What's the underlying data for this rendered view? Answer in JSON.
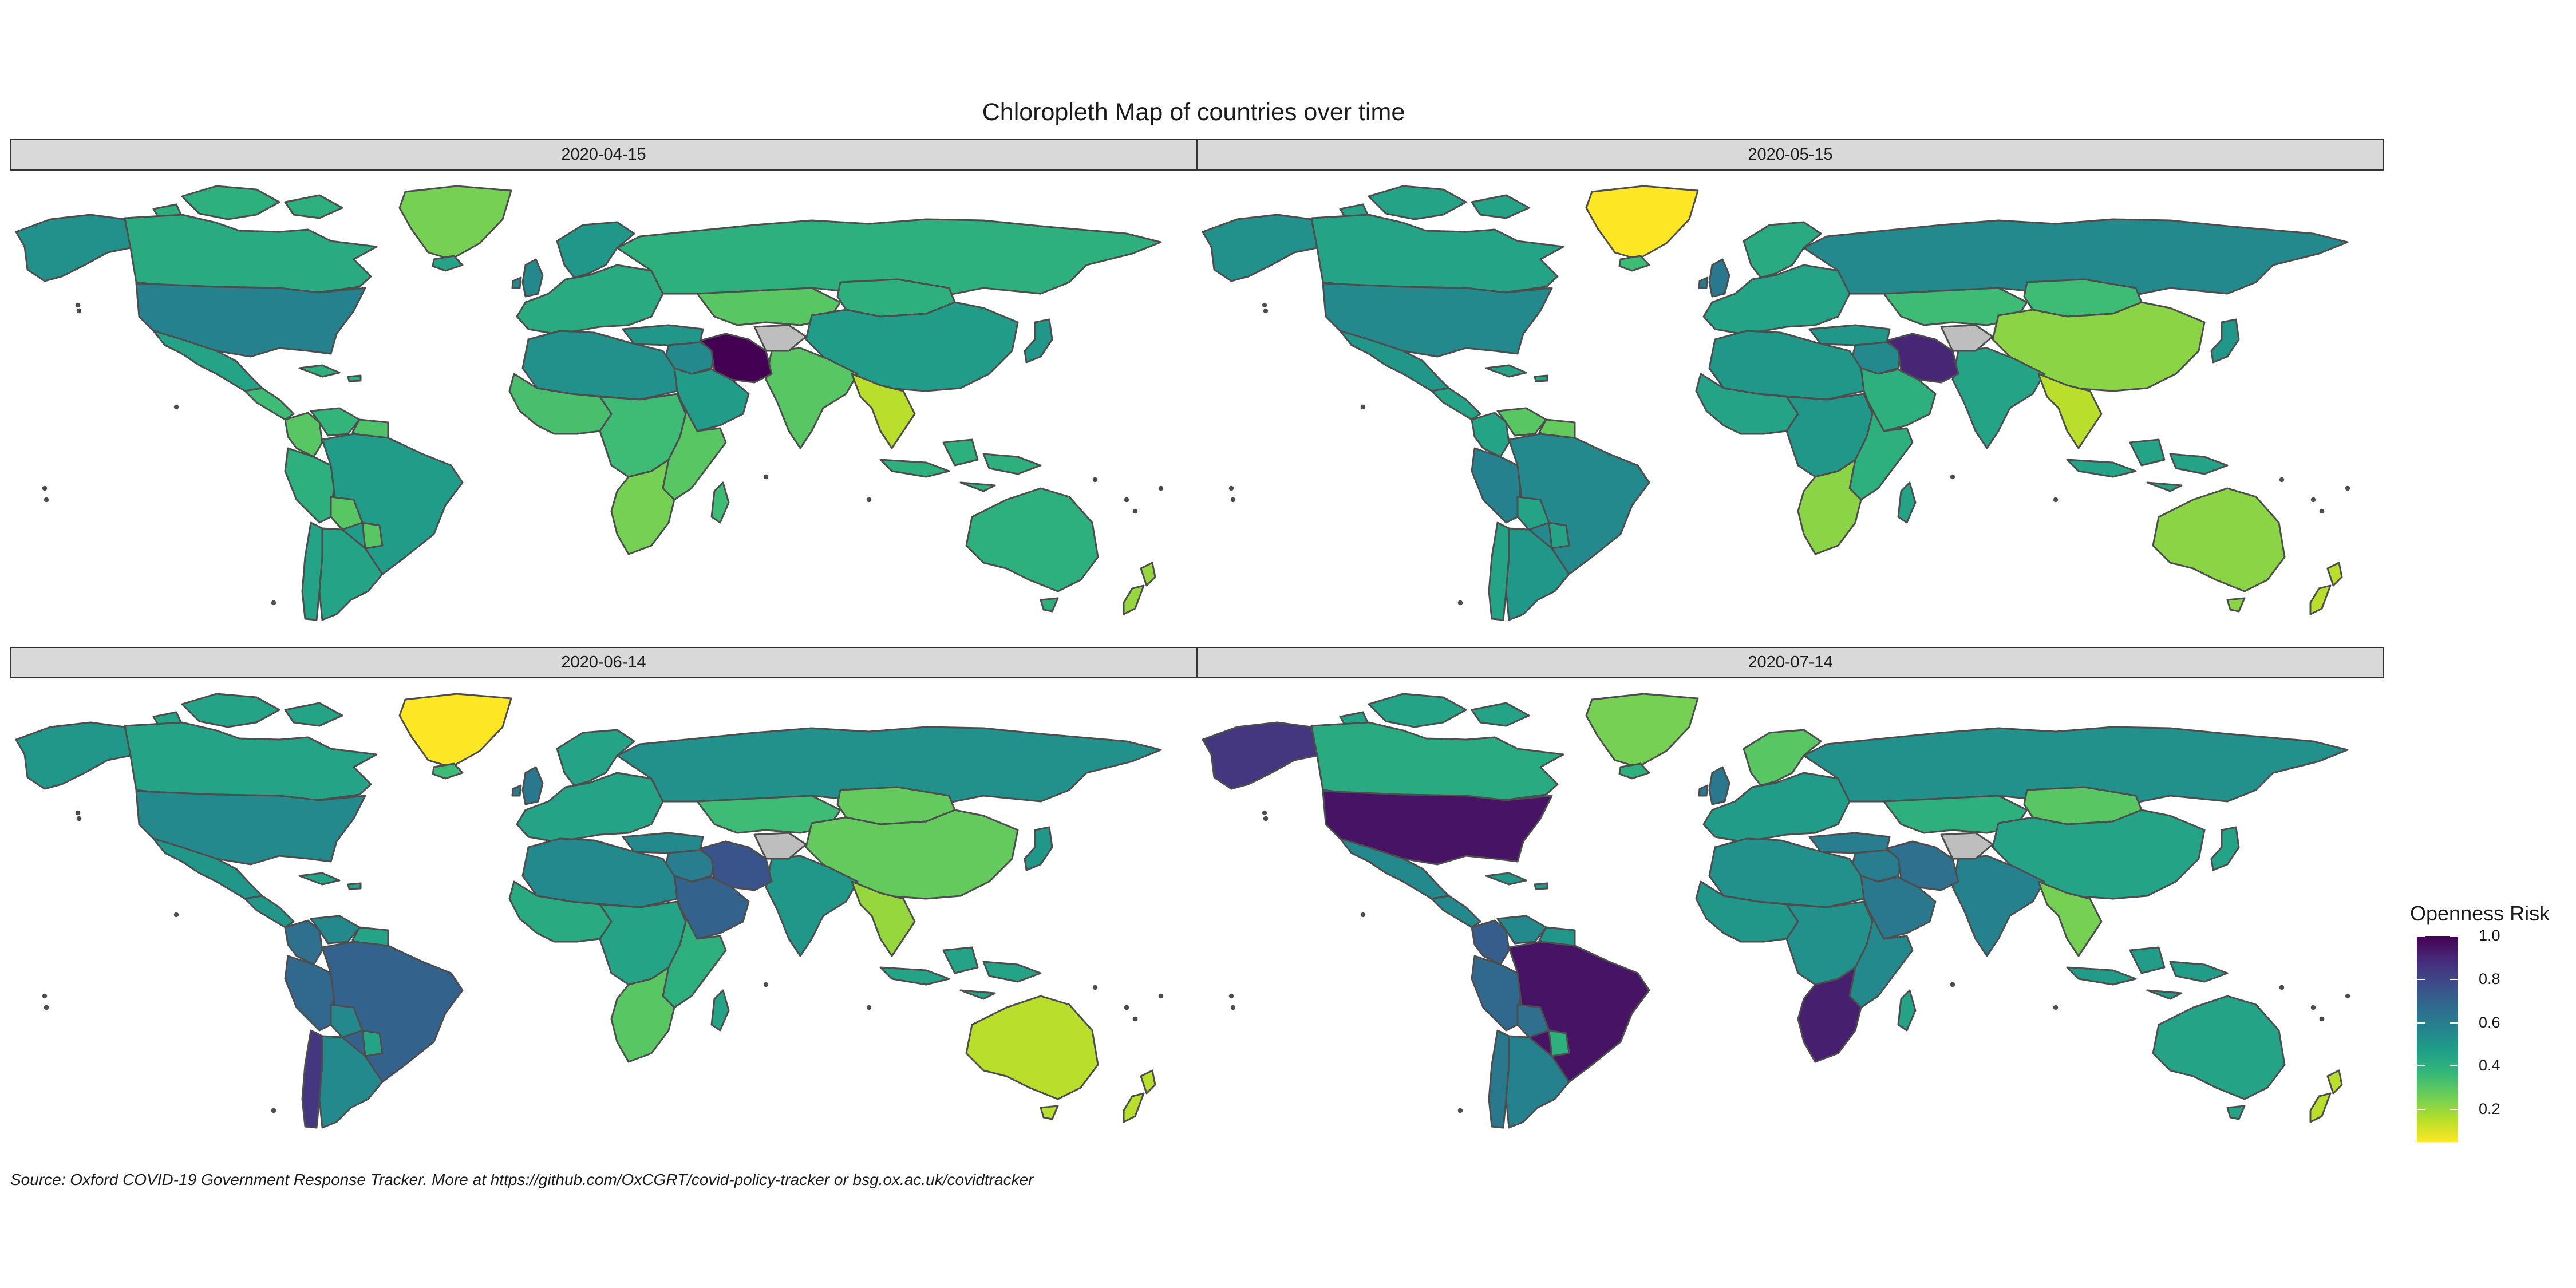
{
  "title": "Chloropleth Map of countries over time",
  "caption": "Source: Oxford COVID-19 Government Response Tracker. More at https://github.com/OxCGRT/covid-policy-tracker or bsg.ox.ac.uk/covidtracker",
  "legend": {
    "title": "Openness Risk",
    "ticks": [
      "1.0",
      "0.8",
      "0.6",
      "0.4",
      "0.2"
    ],
    "tick_values": [
      1.0,
      0.8,
      0.6,
      0.4,
      0.2
    ],
    "range": [
      0.05,
      1.0
    ],
    "palette": [
      "#fde725",
      "#b5de2b",
      "#6ece58",
      "#35b779",
      "#1f9e89",
      "#26828e",
      "#31688e",
      "#3e4989",
      "#482878",
      "#440154"
    ],
    "na_color": "#bebebe"
  },
  "panels": [
    {
      "date": "2020-04-15",
      "values": {
        "canada": 0.42,
        "alaska": 0.52,
        "greenland": 0.25,
        "arctic": 0.4,
        "usa": 0.58,
        "mexico": 0.45,
        "central_america": 0.35,
        "caribbean": 0.4,
        "colombia": 0.3,
        "venezuela": 0.38,
        "guianas": 0.32,
        "peru": 0.4,
        "brazil": 0.48,
        "bolivia": 0.3,
        "chile": 0.45,
        "argentina": 0.45,
        "paraguay": 0.3,
        "iceland": 0.45,
        "uk": 0.55,
        "europe": 0.42,
        "scandinavia": 0.5,
        "russia": 0.4,
        "central_asia": 0.3,
        "turkey": 0.5,
        "middle_east": 0.55,
        "iran": 1.0,
        "afghanistan": null,
        "saudi": 0.48,
        "india": 0.3,
        "china": 0.48,
        "mongolia": 0.4,
        "se_asia": 0.15,
        "japan": 0.5,
        "indonesia": 0.4,
        "australia": 0.4,
        "nz": 0.2,
        "n_africa": 0.52,
        "w_africa": 0.33,
        "c_africa": 0.35,
        "e_africa": 0.3,
        "s_africa": 0.25,
        "madagascar": 0.35
      }
    },
    {
      "date": "2020-05-15",
      "values": {
        "canada": 0.45,
        "alaska": 0.52,
        "greenland": 0.05,
        "arctic": 0.45,
        "usa": 0.55,
        "mexico": 0.5,
        "central_america": 0.45,
        "caribbean": 0.45,
        "colombia": 0.45,
        "venezuela": 0.3,
        "guianas": 0.28,
        "peru": 0.58,
        "brazil": 0.55,
        "bolivia": 0.45,
        "chile": 0.45,
        "argentina": 0.5,
        "paraguay": 0.45,
        "iceland": 0.35,
        "uk": 0.62,
        "europe": 0.45,
        "scandinavia": 0.42,
        "russia": 0.55,
        "central_asia": 0.35,
        "turkey": 0.5,
        "middle_east": 0.55,
        "iran": 0.9,
        "afghanistan": null,
        "saudi": 0.4,
        "india": 0.45,
        "china": 0.22,
        "mongolia": 0.35,
        "se_asia": 0.15,
        "japan": 0.5,
        "indonesia": 0.45,
        "australia": 0.22,
        "nz": 0.15,
        "n_africa": 0.5,
        "w_africa": 0.45,
        "c_africa": 0.5,
        "e_africa": 0.4,
        "s_africa": 0.22,
        "madagascar": 0.45
      }
    },
    {
      "date": "2020-06-14",
      "values": {
        "canada": 0.45,
        "alaska": 0.5,
        "greenland": 0.05,
        "arctic": 0.45,
        "usa": 0.55,
        "mexico": 0.5,
        "central_america": 0.5,
        "caribbean": 0.45,
        "colombia": 0.65,
        "venezuela": 0.55,
        "guianas": 0.45,
        "peru": 0.68,
        "brazil": 0.7,
        "bolivia": 0.55,
        "chile": 0.85,
        "argentina": 0.55,
        "paraguay": 0.45,
        "iceland": 0.35,
        "uk": 0.62,
        "europe": 0.45,
        "scandinavia": 0.45,
        "russia": 0.52,
        "central_asia": 0.35,
        "turkey": 0.55,
        "middle_east": 0.6,
        "iran": 0.75,
        "afghanistan": null,
        "saudi": 0.7,
        "india": 0.5,
        "china": 0.28,
        "mongolia": 0.28,
        "se_asia": 0.2,
        "japan": 0.5,
        "indonesia": 0.45,
        "australia": 0.15,
        "nz": 0.15,
        "n_africa": 0.55,
        "w_africa": 0.42,
        "c_africa": 0.45,
        "e_africa": 0.4,
        "s_africa": 0.3,
        "madagascar": 0.45
      }
    },
    {
      "date": "2020-07-14",
      "values": {
        "canada": 0.42,
        "alaska": 0.85,
        "greenland": 0.25,
        "arctic": 0.45,
        "usa": 0.95,
        "mexico": 0.55,
        "central_america": 0.55,
        "caribbean": 0.5,
        "colombia": 0.72,
        "venezuela": 0.55,
        "guianas": 0.5,
        "peru": 0.68,
        "brazil": 0.95,
        "bolivia": 0.65,
        "chile": 0.62,
        "argentina": 0.58,
        "paraguay": 0.4,
        "iceland": 0.4,
        "uk": 0.62,
        "europe": 0.48,
        "scandinavia": 0.3,
        "russia": 0.52,
        "central_asia": 0.4,
        "turkey": 0.6,
        "middle_east": 0.6,
        "iran": 0.65,
        "afghanistan": null,
        "saudi": 0.62,
        "india": 0.58,
        "china": 0.45,
        "mongolia": 0.3,
        "se_asia": 0.25,
        "japan": 0.45,
        "indonesia": 0.48,
        "australia": 0.45,
        "nz": 0.15,
        "n_africa": 0.52,
        "w_africa": 0.5,
        "c_africa": 0.52,
        "e_africa": 0.55,
        "s_africa": 0.92,
        "madagascar": 0.45
      }
    }
  ]
}
